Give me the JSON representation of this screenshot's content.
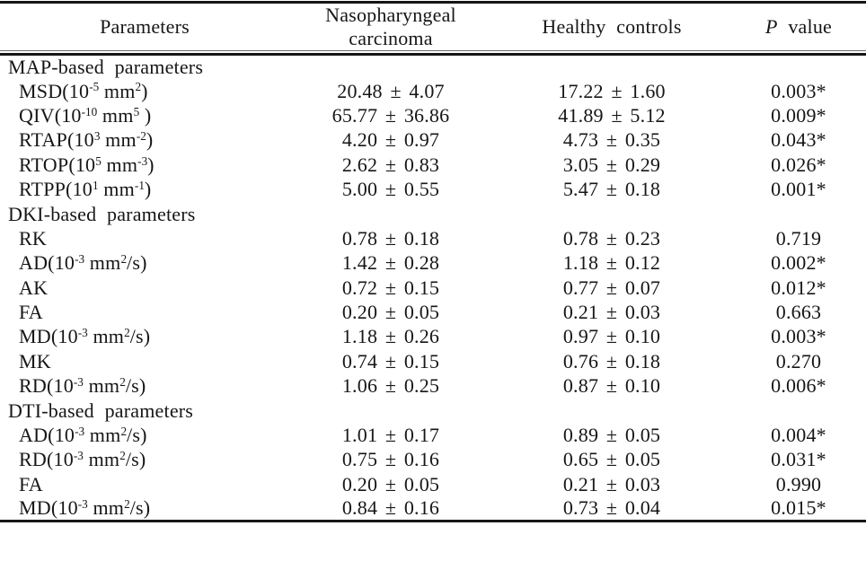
{
  "header": {
    "parameters": "Parameters",
    "npc_line1": "Nasopharyngeal",
    "npc_line2": "carcinoma",
    "healthy": "Healthy controls",
    "p_italic": "P",
    "p_rest": " value"
  },
  "rows": [
    {
      "type": "section",
      "label": "MAP-based parameters"
    },
    {
      "type": "data",
      "label": "MSD(10^{-5} mm^{2})",
      "npc": "20.48 ± 4.07",
      "hc": "17.22 ± 1.60",
      "p": "0.003*"
    },
    {
      "type": "data",
      "label": "QIV(10^{-10} mm^{5} )",
      "npc": "65.77 ± 36.86",
      "hc": "41.89 ± 5.12",
      "p": "0.009*"
    },
    {
      "type": "data",
      "label": "RTAP(10^{3} mm^{-2})",
      "npc": "4.20 ± 0.97",
      "hc": "4.73 ± 0.35",
      "p": "0.043*"
    },
    {
      "type": "data",
      "label": "RTOP(10^{5} mm^{-3})",
      "npc": "2.62 ± 0.83",
      "hc": "3.05 ± 0.29",
      "p": "0.026*"
    },
    {
      "type": "data",
      "label": "RTPP(10^{1} mm^{-1})",
      "npc": "5.00 ± 0.55",
      "hc": "5.47 ± 0.18",
      "p": "0.001*"
    },
    {
      "type": "section",
      "label": "DKI-based parameters"
    },
    {
      "type": "data",
      "label": "RK",
      "npc": "0.78 ± 0.18",
      "hc": "0.78 ± 0.23",
      "p": "0.719"
    },
    {
      "type": "data",
      "label": "AD(10^{-3} mm^{2}/s)",
      "npc": "1.42 ± 0.28",
      "hc": "1.18 ± 0.12",
      "p": "0.002*"
    },
    {
      "type": "data",
      "label": "AK",
      "npc": "0.72 ± 0.15",
      "hc": "0.77 ± 0.07",
      "p": "0.012*"
    },
    {
      "type": "data",
      "label": "FA",
      "npc": "0.20 ± 0.05",
      "hc": "0.21 ± 0.03",
      "p": "0.663"
    },
    {
      "type": "data",
      "label": "MD(10^{-3} mm^{2}/s)",
      "npc": "1.18 ± 0.26",
      "hc": "0.97 ± 0.10",
      "p": "0.003*"
    },
    {
      "type": "data",
      "label": "MK",
      "npc": "0.74 ± 0.15",
      "hc": "0.76 ± 0.18",
      "p": "0.270"
    },
    {
      "type": "data",
      "label": "RD(10^{-3} mm^{2}/s)",
      "npc": "1.06 ± 0.25",
      "hc": "0.87 ± 0.10",
      "p": "0.006*"
    },
    {
      "type": "section",
      "label": "DTI-based parameters"
    },
    {
      "type": "data",
      "label": "AD(10^{-3} mm^{2}/s)",
      "npc": "1.01 ± 0.17",
      "hc": "0.89 ± 0.05",
      "p": "0.004*"
    },
    {
      "type": "data",
      "label": "RD(10^{-3} mm^{2}/s)",
      "npc": "0.75 ± 0.16",
      "hc": "0.65 ± 0.05",
      "p": "0.031*"
    },
    {
      "type": "data",
      "label": "FA",
      "npc": "0.20 ± 0.05",
      "hc": "0.21 ± 0.03",
      "p": "0.990"
    },
    {
      "type": "data",
      "label": "MD(10^{-3} mm^{2}/s)",
      "npc": "0.84 ± 0.16",
      "hc": "0.73 ± 0.04",
      "p": "0.015*"
    }
  ]
}
